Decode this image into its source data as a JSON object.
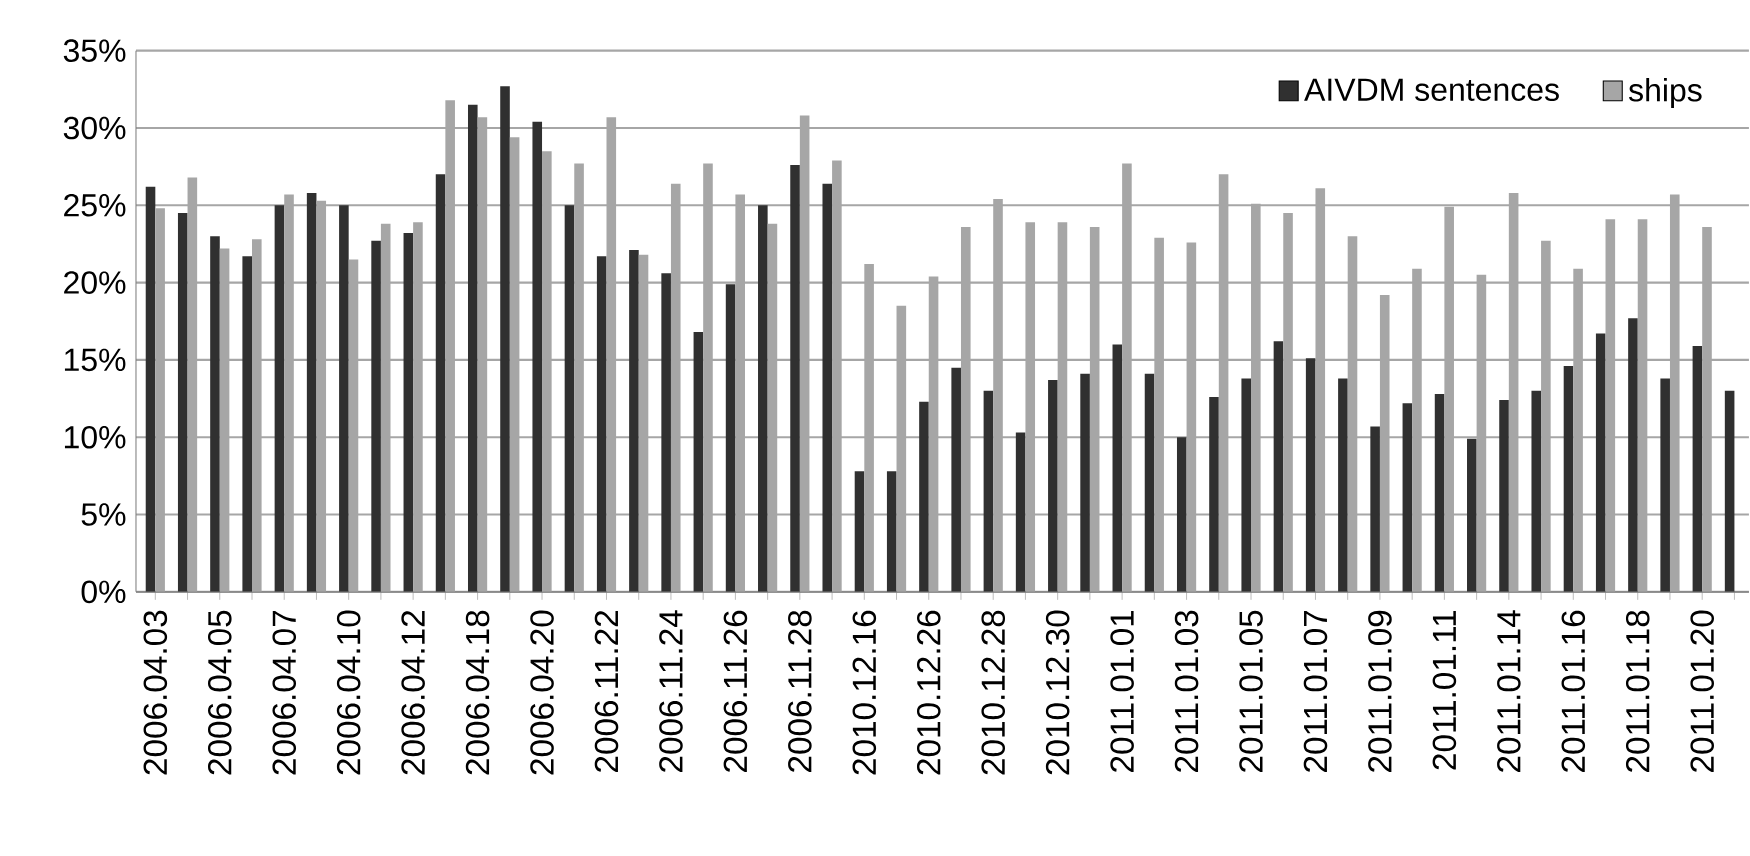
{
  "chart_data": {
    "type": "bar",
    "categories": [
      "2006.04.03",
      null,
      "2006.04.05",
      null,
      "2006.04.07",
      null,
      "2006.04.10",
      null,
      "2006.04.12",
      null,
      "2006.04.18",
      null,
      "2006.04.20",
      null,
      "2006.11.22",
      null,
      "2006.11.24",
      null,
      "2006.11.26",
      null,
      "2006.11.28",
      null,
      "2010.12.16",
      null,
      "2010.12.26",
      null,
      "2010.12.28",
      null,
      "2010.12.30",
      null,
      "2011.01.01",
      null,
      "2011.01.03",
      null,
      "2011.01.05",
      null,
      "2011.01.07",
      null,
      "2011.01.09",
      null,
      "2011.01.11",
      null,
      "2011.01.14",
      null,
      "2011.01.16",
      null,
      "2011.01.18",
      null,
      "2011.01.20",
      null
    ],
    "series": [
      {
        "name": "AIVDM sentences",
        "color": "#303030",
        "values": [
          26.2,
          24.5,
          23.0,
          21.7,
          25.0,
          25.8,
          25.0,
          22.7,
          23.2,
          27.0,
          31.5,
          32.7,
          30.4,
          25.0,
          21.7,
          22.1,
          20.6,
          16.8,
          19.9,
          25.0,
          27.6,
          26.4,
          7.8,
          7.8,
          12.3,
          14.5,
          13.0,
          10.3,
          13.7,
          14.1,
          16.0,
          14.1,
          10.0,
          12.6,
          13.8,
          16.2,
          15.1,
          13.8,
          10.7,
          12.2,
          12.8,
          9.9,
          12.4,
          13.0,
          14.6,
          16.7,
          17.7,
          13.8,
          15.9,
          13.0
        ]
      },
      {
        "name": "ships",
        "color": "#a6a6a6",
        "values": [
          24.8,
          26.8,
          22.2,
          22.8,
          25.7,
          25.3,
          21.5,
          23.8,
          23.9,
          31.8,
          30.7,
          29.4,
          28.5,
          27.7,
          30.7,
          21.8,
          26.4,
          27.7,
          25.7,
          23.8,
          30.8,
          27.9,
          21.2,
          18.5,
          20.4,
          23.6,
          25.4,
          23.9,
          23.9,
          23.6,
          27.7,
          22.9,
          22.6,
          27.0,
          25.1,
          24.5,
          26.1,
          23.0,
          19.2,
          20.9,
          24.9,
          20.5,
          25.8,
          22.7,
          20.9,
          24.1,
          24.1,
          25.7,
          23.6,
          null
        ]
      }
    ],
    "ylim": [
      0,
      35
    ],
    "yticks": [
      {
        "value": 0,
        "label": "0%"
      },
      {
        "value": 5,
        "label": "5%"
      },
      {
        "value": 10,
        "label": "10%"
      },
      {
        "value": 15,
        "label": "15%"
      },
      {
        "value": 20,
        "label": "20%"
      },
      {
        "value": 25,
        "label": "25%"
      },
      {
        "value": 30,
        "label": "30%"
      },
      {
        "value": 35,
        "label": "35%"
      }
    ],
    "grid": "y",
    "legend": "top right"
  }
}
